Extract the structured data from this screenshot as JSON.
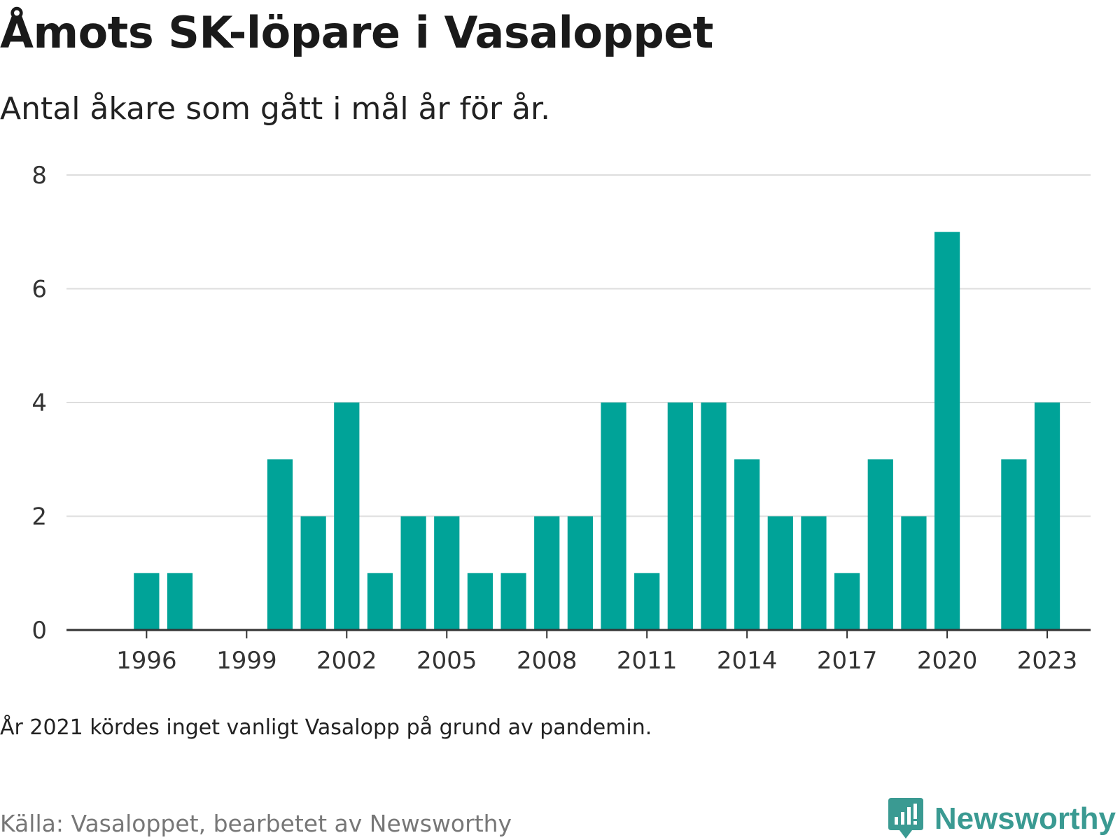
{
  "header": {
    "title": "Åmots SK-löpare i Vasaloppet",
    "subtitle": "Antal åkare som gått i mål år för år."
  },
  "footer": {
    "note": "År 2021 kördes inget vanligt Vasalopp på grund av pandemin.",
    "source": "Källa: Vasaloppet, bearbetet av Newsworthy",
    "logo_text": "Newsworthy"
  },
  "colors": {
    "bar": "#00a398",
    "grid": "#dddddd",
    "axis": "#333333",
    "logo": "#3a9a92"
  },
  "chart_data": {
    "type": "bar",
    "title": "Åmots SK-löpare i Vasaloppet",
    "subtitle": "Antal åkare som gått i mål år för år.",
    "xlabel": "",
    "ylabel": "",
    "categories": [
      1996,
      1997,
      1998,
      1999,
      2000,
      2001,
      2002,
      2003,
      2004,
      2005,
      2006,
      2007,
      2008,
      2009,
      2010,
      2011,
      2012,
      2013,
      2014,
      2015,
      2016,
      2017,
      2018,
      2019,
      2020,
      2021,
      2022,
      2023
    ],
    "values": [
      1,
      1,
      0,
      0,
      3,
      2,
      4,
      1,
      2,
      2,
      1,
      1,
      2,
      2,
      4,
      1,
      4,
      4,
      3,
      2,
      2,
      1,
      3,
      2,
      7,
      0,
      3,
      4
    ],
    "xlim": [
      1993.6,
      2024.3
    ],
    "ylim": [
      0,
      8
    ],
    "yticks": [
      0,
      2,
      4,
      6,
      8
    ],
    "xticks": [
      1996,
      1999,
      2002,
      2005,
      2008,
      2011,
      2014,
      2017,
      2020,
      2023
    ],
    "grid": true,
    "legend": "none"
  }
}
